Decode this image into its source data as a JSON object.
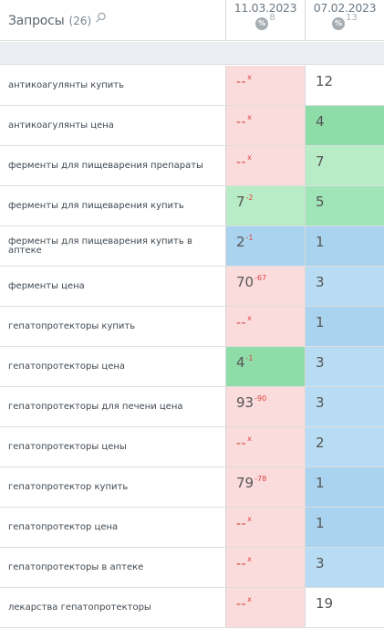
{
  "header": {
    "title": "Запросы",
    "count": "(26)",
    "columns": [
      {
        "date": "11.03.2023",
        "pct_icon": "%",
        "pct_value": "8"
      },
      {
        "date": "07.02.2023",
        "pct_icon": "%",
        "pct_value": "13"
      }
    ]
  },
  "colors": {
    "pink": "#fadcdc",
    "green": "#9fe5b8",
    "blue": "#a9d3ef",
    "change_red": "#e04040"
  },
  "rows": [
    {
      "query": "антикоагулянты купить",
      "c1": {
        "pos": "--",
        "chg": "x",
        "bg": "pink"
      },
      "c2": {
        "pos": "12",
        "bg": "white"
      }
    },
    {
      "query": "антикоагулянты цена",
      "c1": {
        "pos": "--",
        "chg": "x",
        "bg": "pink"
      },
      "c2": {
        "pos": "4",
        "bg": "mgreen"
      }
    },
    {
      "query": "ферменты для пищеварения препараты",
      "c1": {
        "pos": "--",
        "chg": "x",
        "bg": "pink"
      },
      "c2": {
        "pos": "7",
        "bg": "lgreen"
      }
    },
    {
      "query": "ферменты для пищеварения купить",
      "c1": {
        "pos": "7",
        "chg": "-2",
        "bg": "lgreen"
      },
      "c2": {
        "pos": "5",
        "bg": "green"
      }
    },
    {
      "query": "ферменты для пищеварения купить в аптеке",
      "c1": {
        "pos": "2",
        "chg": "-1",
        "bg": "blue"
      },
      "c2": {
        "pos": "1",
        "bg": "blue"
      }
    },
    {
      "query": "ферменты цена",
      "c1": {
        "pos": "70",
        "chg": "-67",
        "bg": "pink"
      },
      "c2": {
        "pos": "3",
        "bg": "lblue"
      }
    },
    {
      "query": "гепатопротекторы купить",
      "c1": {
        "pos": "--",
        "chg": "x",
        "bg": "pink"
      },
      "c2": {
        "pos": "1",
        "bg": "blue"
      }
    },
    {
      "query": "гепатопротекторы цена",
      "c1": {
        "pos": "4",
        "chg": "-1",
        "bg": "mgreen"
      },
      "c2": {
        "pos": "3",
        "bg": "lblue"
      }
    },
    {
      "query": "гепатопротекторы для печени цена",
      "c1": {
        "pos": "93",
        "chg": "-90",
        "bg": "pink"
      },
      "c2": {
        "pos": "3",
        "bg": "lblue"
      }
    },
    {
      "query": "гепатопротекторы цены",
      "c1": {
        "pos": "--",
        "chg": "x",
        "bg": "pink"
      },
      "c2": {
        "pos": "2",
        "bg": "lblue"
      }
    },
    {
      "query": "гепатопротектор купить",
      "c1": {
        "pos": "79",
        "chg": "-78",
        "bg": "pink"
      },
      "c2": {
        "pos": "1",
        "bg": "blue"
      }
    },
    {
      "query": "гепатопротектор цена",
      "c1": {
        "pos": "--",
        "chg": "x",
        "bg": "pink"
      },
      "c2": {
        "pos": "1",
        "bg": "blue"
      }
    },
    {
      "query": "гепатопротекторы в аптеке",
      "c1": {
        "pos": "--",
        "chg": "x",
        "bg": "pink"
      },
      "c2": {
        "pos": "3",
        "bg": "lblue"
      }
    },
    {
      "query": "лекарства гепатопротекторы",
      "c1": {
        "pos": "--",
        "chg": "x",
        "bg": "pink"
      },
      "c2": {
        "pos": "19",
        "bg": "white"
      }
    }
  ]
}
